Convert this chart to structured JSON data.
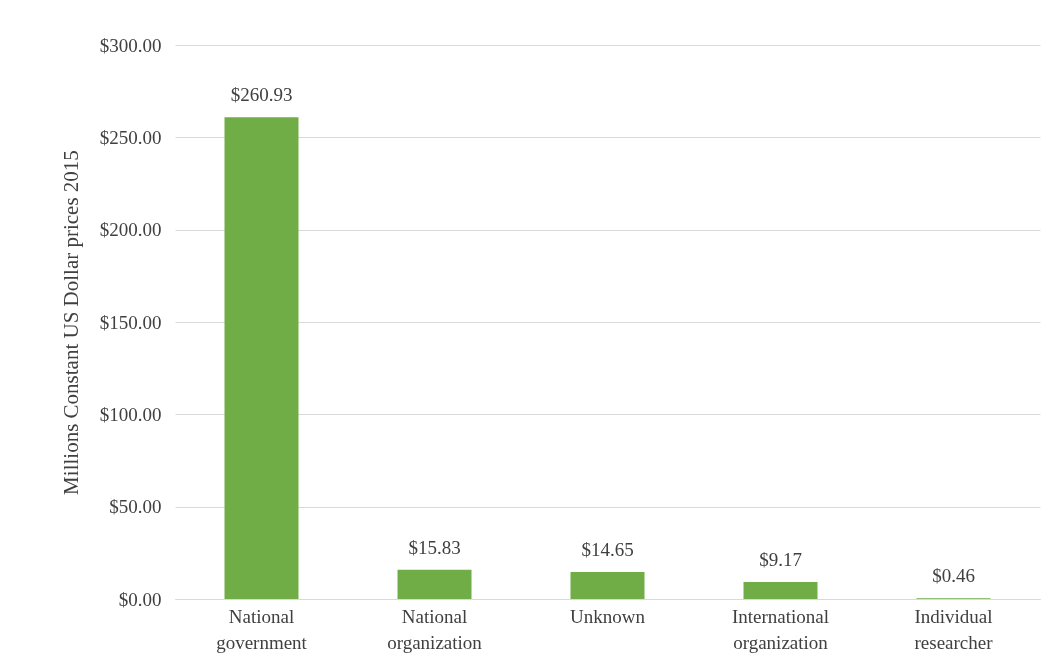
{
  "chart_data": {
    "type": "bar",
    "ylabel": "Millions Constant US Dollar prices 2015",
    "categories": [
      "National government",
      "National organization",
      "Unknown",
      "International organization",
      "Individual researcher"
    ],
    "values": [
      260.93,
      15.83,
      14.65,
      9.17,
      0.46
    ],
    "value_labels": [
      "$260.93",
      "$15.83",
      "$14.65",
      "$9.17",
      "$0.46"
    ],
    "color": "#70ad47",
    "ylim": [
      0,
      300
    ],
    "yticks": [
      {
        "value": 0,
        "label": "$0.00"
      },
      {
        "value": 50,
        "label": "$50.00"
      },
      {
        "value": 100,
        "label": "$100.00"
      },
      {
        "value": 150,
        "label": "$150.00"
      },
      {
        "value": 200,
        "label": "$200.00"
      },
      {
        "value": 250,
        "label": "$250.00"
      },
      {
        "value": 300,
        "label": "$300.00"
      }
    ],
    "grid": "y"
  }
}
